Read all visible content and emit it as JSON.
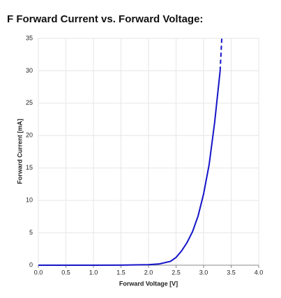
{
  "chart_data": {
    "type": "line",
    "title": "F Forward Current vs. Forward Voltage:",
    "x_label": "Forward Voltage [V]",
    "y_label": "Forward Current [mA]",
    "xlim": [
      0,
      4
    ],
    "ylim": [
      0,
      35
    ],
    "xticks": [
      {
        "value": 0,
        "label": "0.0"
      },
      0.5,
      {
        "value": 1,
        "label": "1.0"
      },
      1.5,
      {
        "value": 2,
        "label": "2.0"
      },
      2.5,
      {
        "value": 3,
        "label": "3.0"
      },
      3.5,
      {
        "value": 4,
        "label": "4.0"
      }
    ],
    "yticks": [
      0,
      5,
      10,
      15,
      20,
      25,
      30,
      35
    ],
    "grid": true,
    "series": [
      {
        "color": "#1414c8",
        "dashed": false,
        "x": [
          0,
          0.5,
          1,
          1.5,
          2,
          2.2,
          2.4,
          2.5,
          2.6,
          2.7,
          2.8,
          2.9,
          3.0,
          3.1,
          3.2,
          3.3
        ],
        "values": [
          0,
          0,
          0,
          0.02,
          0.08,
          0.2,
          0.6,
          1.2,
          2.2,
          3.5,
          5.2,
          7.6,
          11,
          15.5,
          22,
          30
        ]
      },
      {
        "color": "#1414c8",
        "dashed": true,
        "x": [
          3.3,
          3.33
        ],
        "values": [
          30,
          35
        ]
      }
    ]
  }
}
